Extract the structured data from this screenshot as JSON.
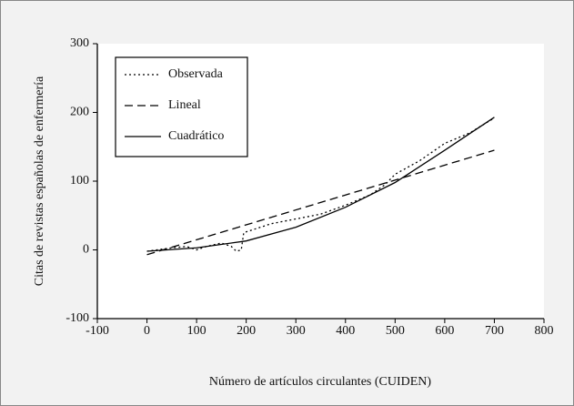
{
  "chart_data": {
    "type": "line",
    "x_label": "Número de artículos circulantes (CUIDEN)",
    "y_label": "Citas de revistas españolas de enfermería",
    "xlim": [
      -100,
      800
    ],
    "xticks": [
      -100,
      0,
      100,
      200,
      300,
      400,
      500,
      600,
      700,
      800
    ],
    "ylim": [
      -100,
      300
    ],
    "yticks": [
      -100,
      0,
      100,
      200,
      300
    ],
    "legend": "upper left",
    "series": [
      {
        "name": "Observada",
        "color": "#000000",
        "style": "dotted",
        "x": [
          0,
          50,
          80,
          100,
          120,
          150,
          170,
          180,
          190,
          195,
          250,
          300,
          350,
          400,
          450,
          480,
          500,
          550,
          600,
          650,
          700
        ],
        "values": [
          -2,
          3,
          5,
          0,
          5,
          10,
          5,
          -2,
          0,
          25,
          38,
          45,
          52,
          65,
          80,
          95,
          110,
          130,
          155,
          170,
          192
        ]
      },
      {
        "name": "Lineal",
        "color": "#000000",
        "style": "dashed",
        "x": [
          0,
          700
        ],
        "values": [
          -7,
          145
        ]
      },
      {
        "name": "Cuadrático",
        "color": "#000000",
        "style": "solid",
        "x": [
          0,
          100,
          200,
          300,
          400,
          500,
          600,
          700
        ],
        "values": [
          -2,
          3,
          13,
          33,
          62,
          98,
          145,
          193
        ]
      }
    ]
  }
}
